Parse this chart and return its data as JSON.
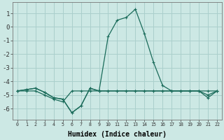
{
  "xlabel": "Humidex (Indice chaleur)",
  "background_color": "#cce8e4",
  "grid_color": "#aacfcc",
  "line_color": "#1a6b5a",
  "xlim": [
    -0.5,
    22.5
  ],
  "ylim": [
    -6.8,
    1.8
  ],
  "series1_x": [
    0,
    1,
    2,
    3,
    4,
    5,
    6,
    7,
    8,
    9,
    10,
    11,
    12,
    13,
    14,
    15,
    16,
    17,
    18,
    19,
    20,
    21,
    22
  ],
  "series1_y": [
    -4.7,
    -4.6,
    -4.5,
    -4.8,
    -5.2,
    -5.3,
    -6.3,
    -5.8,
    -4.5,
    -4.7,
    -4.7,
    -4.7,
    -4.7,
    -4.7,
    -4.7,
    -4.7,
    -4.7,
    -4.7,
    -4.7,
    -4.7,
    -4.7,
    -4.7,
    -4.7
  ],
  "series2_x": [
    0,
    1,
    2,
    3,
    4,
    5,
    6,
    7,
    8,
    9,
    10,
    11,
    12,
    13,
    14,
    15,
    16,
    17,
    18,
    19,
    20,
    21,
    22
  ],
  "series2_y": [
    -4.7,
    -4.6,
    -4.5,
    -4.8,
    -5.2,
    -5.3,
    -6.3,
    -5.8,
    -4.5,
    -4.7,
    -0.7,
    0.5,
    0.7,
    1.3,
    -0.5,
    -2.6,
    -4.3,
    -4.7,
    -4.7,
    -4.7,
    -4.7,
    -5.2,
    -4.7
  ],
  "series3_x": [
    0,
    1,
    2,
    3,
    4,
    5,
    6,
    7,
    8,
    9,
    10,
    11,
    12,
    13,
    14,
    15,
    16,
    17,
    18,
    19,
    20,
    21,
    22
  ],
  "series3_y": [
    -4.7,
    -4.7,
    -4.7,
    -5.0,
    -5.3,
    -5.5,
    -4.7,
    -4.7,
    -4.7,
    -4.7,
    -4.7,
    -4.7,
    -4.7,
    -4.7,
    -4.7,
    -4.7,
    -4.7,
    -4.7,
    -4.7,
    -4.7,
    -4.7,
    -5.0,
    -4.7
  ],
  "yticks": [
    -6,
    -5,
    -4,
    -3,
    -2,
    -1,
    0,
    1
  ],
  "ytick_labels": [
    "-6",
    "-5",
    "-4",
    "-3",
    "-2",
    "-1",
    "0",
    "1"
  ],
  "xtick_labels": [
    "0",
    "1",
    "2",
    "3",
    "4",
    "5",
    "6",
    "7",
    "8",
    "9",
    "10",
    "11",
    "12",
    "13",
    "14",
    "15",
    "16",
    "17",
    "18",
    "19",
    "20",
    "21",
    "22"
  ]
}
